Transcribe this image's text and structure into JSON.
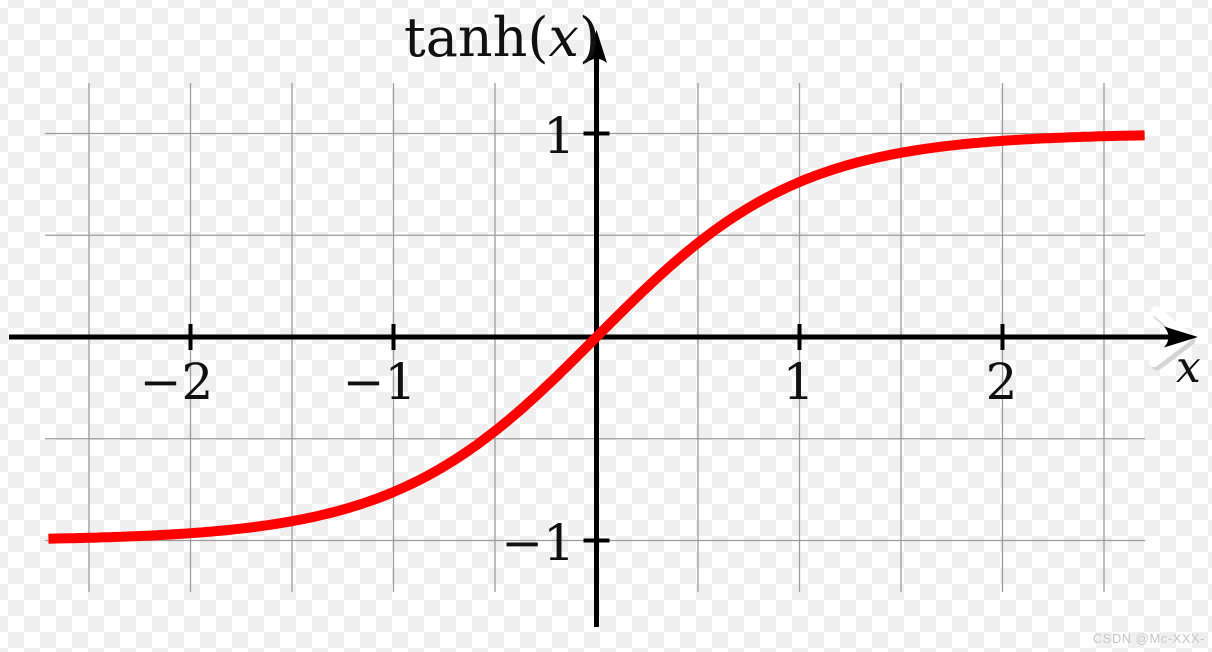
{
  "watermark": "CSDN @Mc-XXX-",
  "colors": {
    "curve": "#ff0000",
    "axis": "#000000",
    "grid": "#9c9c9c",
    "checker_light": "#ffffff",
    "checker_gray": "#efefef",
    "arrow_highlight": "#ffffff",
    "arrow_highlight_shade": "#d4d4d4",
    "text": "#111111",
    "watermark_text": "#c4c4c4"
  },
  "chart_data": {
    "type": "line",
    "title": "tanh(x)",
    "title_parts": {
      "fn": "tanh(",
      "var": "x",
      "close": ")"
    },
    "xlabel": "x",
    "ylabel": "",
    "function": "tanh",
    "x_range": [
      -2.7,
      2.7
    ],
    "xlim": [
      -2.95,
      3.0
    ],
    "ylim": [
      -1.55,
      1.55
    ],
    "grid": true,
    "grid_step": 0.5,
    "grid_x_lines": [
      -2.5,
      -2,
      -1.5,
      -1,
      -0.5,
      0.5,
      1,
      1.5,
      2,
      2.5
    ],
    "grid_y_lines": [
      1,
      0.5,
      -0.5,
      -1
    ],
    "x_ticks": [
      {
        "value": -2,
        "label": "−2"
      },
      {
        "value": -1,
        "label": "−1"
      },
      {
        "value": 1,
        "label": "1"
      },
      {
        "value": 2,
        "label": "2"
      }
    ],
    "y_ticks": [
      {
        "value": 1,
        "label": "1"
      },
      {
        "value": -1,
        "label": "−1"
      }
    ],
    "series": [
      {
        "name": "tanh(x)",
        "color": "#ff0000",
        "stroke_width": 10,
        "sample_points": [
          {
            "x": -2.7,
            "y": -0.991
          },
          {
            "x": -2.5,
            "y": -0.987
          },
          {
            "x": -2.0,
            "y": -0.964
          },
          {
            "x": -1.5,
            "y": -0.905
          },
          {
            "x": -1.0,
            "y": -0.762
          },
          {
            "x": -0.5,
            "y": -0.462
          },
          {
            "x": 0.0,
            "y": 0.0
          },
          {
            "x": 0.5,
            "y": 0.462
          },
          {
            "x": 1.0,
            "y": 0.762
          },
          {
            "x": 1.5,
            "y": 0.905
          },
          {
            "x": 2.0,
            "y": 0.964
          },
          {
            "x": 2.5,
            "y": 0.987
          },
          {
            "x": 2.7,
            "y": 0.991
          }
        ]
      }
    ],
    "legend": null
  }
}
